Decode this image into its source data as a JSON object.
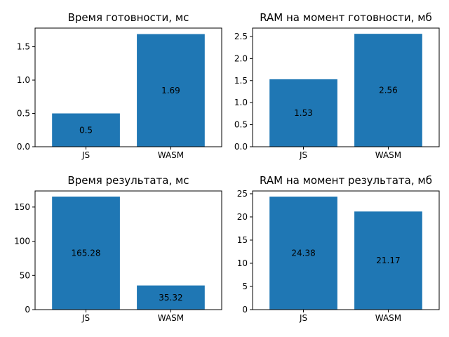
{
  "chart_data": [
    {
      "type": "bar",
      "title": "Время готовности, мс",
      "categories": [
        "JS",
        "WASM"
      ],
      "values": [
        0.5,
        1.69
      ],
      "data_labels": [
        "0.5",
        "1.69"
      ],
      "ylim": [
        0,
        1.78
      ],
      "yticks": [
        0.0,
        0.5,
        1.0,
        1.5
      ],
      "ytick_labels": [
        "0.0",
        "0.5",
        "1.0",
        "1.5"
      ],
      "xlabel": "",
      "ylabel": "",
      "grid": false,
      "bar_color": "#1f77b4"
    },
    {
      "type": "bar",
      "title": "RAM на момент готовности, мб",
      "categories": [
        "JS",
        "WASM"
      ],
      "values": [
        1.53,
        2.56
      ],
      "data_labels": [
        "1.53",
        "2.56"
      ],
      "ylim": [
        0,
        2.69
      ],
      "yticks": [
        0.0,
        0.5,
        1.0,
        1.5,
        2.0,
        2.5
      ],
      "ytick_labels": [
        "0.0",
        "0.5",
        "1.0",
        "1.5",
        "2.0",
        "2.5"
      ],
      "xlabel": "",
      "ylabel": "",
      "grid": false,
      "bar_color": "#1f77b4"
    },
    {
      "type": "bar",
      "title": "Время результата, мс",
      "categories": [
        "JS",
        "WASM"
      ],
      "values": [
        165.28,
        35.32
      ],
      "data_labels": [
        "165.28",
        "35.32"
      ],
      "ylim": [
        0,
        173.5
      ],
      "yticks": [
        0,
        50,
        100,
        150
      ],
      "ytick_labels": [
        "0",
        "50",
        "100",
        "150"
      ],
      "xlabel": "",
      "ylabel": "",
      "grid": false,
      "bar_color": "#1f77b4"
    },
    {
      "type": "bar",
      "title": "RAM на момент результата, мб",
      "categories": [
        "JS",
        "WASM"
      ],
      "values": [
        24.38,
        21.17
      ],
      "data_labels": [
        "24.38",
        "21.17"
      ],
      "ylim": [
        0,
        25.6
      ],
      "yticks": [
        0,
        5,
        10,
        15,
        20,
        25
      ],
      "ytick_labels": [
        "0",
        "5",
        "10",
        "15",
        "20",
        "25"
      ],
      "xlabel": "",
      "ylabel": "",
      "grid": false,
      "bar_color": "#1f77b4"
    }
  ]
}
